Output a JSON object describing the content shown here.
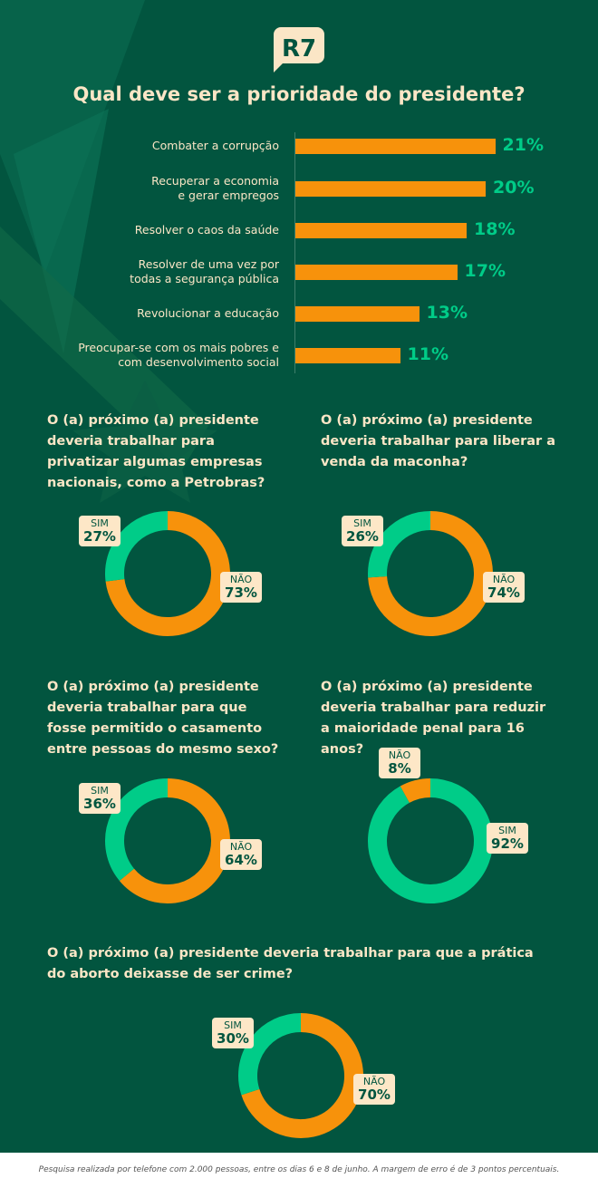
{
  "logo": "R7",
  "colors": {
    "background": "#02553f",
    "orange": "#f7920b",
    "green": "#00cc88",
    "cream": "#fbe6c6"
  },
  "chart_data": [
    {
      "type": "bar",
      "orientation": "horizontal",
      "title": "Qual deve ser a prioridade do presidente?",
      "categories": [
        "Combater a corrupção",
        "Recuperar a economia\ne gerar empregos",
        "Resolver o caos da saúde",
        "Resolver de uma vez por\ntodas a segurança pública",
        "Revolucionar a educação",
        "Preocupar-se com os mais pobres e\ncom desenvolvimento social"
      ],
      "values": [
        21,
        20,
        18,
        17,
        13,
        11
      ],
      "labels": [
        "21%",
        "20%",
        "18%",
        "17%",
        "13%",
        "11%"
      ]
    },
    {
      "type": "pie",
      "title": "O (a) próximo (a) presidente deveria trabalhar para privatizar algumas empresas nacionais, como a Petrobras?",
      "slices": [
        {
          "name": "NÃO",
          "value": 73,
          "label": "73%",
          "color": "#f7920b"
        },
        {
          "name": "SIM",
          "value": 27,
          "label": "27%",
          "color": "#00cc88"
        }
      ]
    },
    {
      "type": "pie",
      "title": "O (a) próximo (a) presidente deveria trabalhar para liberar a venda da maconha?",
      "slices": [
        {
          "name": "NÃO",
          "value": 74,
          "label": "74%",
          "color": "#f7920b"
        },
        {
          "name": "SIM",
          "value": 26,
          "label": "26%",
          "color": "#00cc88"
        }
      ]
    },
    {
      "type": "pie",
      "title": "O (a) próximo (a) presidente deveria trabalhar para que fosse permitido o casamento entre pessoas do mesmo sexo?",
      "slices": [
        {
          "name": "NÃO",
          "value": 64,
          "label": "64%",
          "color": "#f7920b"
        },
        {
          "name": "SIM",
          "value": 36,
          "label": "36%",
          "color": "#00cc88"
        }
      ]
    },
    {
      "type": "pie",
      "title": "O (a) próximo (a) presidente deveria trabalhar para reduzir a maioridade penal para 16 anos?",
      "slices": [
        {
          "name": "SIM",
          "value": 92,
          "label": "92%",
          "color": "#00cc88"
        },
        {
          "name": "NÃO",
          "value": 8,
          "label": "8%",
          "color": "#f7920b"
        }
      ]
    },
    {
      "type": "pie",
      "title": "O (a) próximo (a) presidente deveria trabalhar para que a prática do aborto deixasse de ser crime?",
      "slices": [
        {
          "name": "NÃO",
          "value": 70,
          "label": "70%",
          "color": "#f7920b"
        },
        {
          "name": "SIM",
          "value": 30,
          "label": "30%",
          "color": "#00cc88"
        }
      ]
    }
  ],
  "footnote": "Pesquisa realizada por telefone com 2.000 pessoas, entre os dias 6 e 8 de junho. A margem de erro é de 3 pontos percentuais."
}
